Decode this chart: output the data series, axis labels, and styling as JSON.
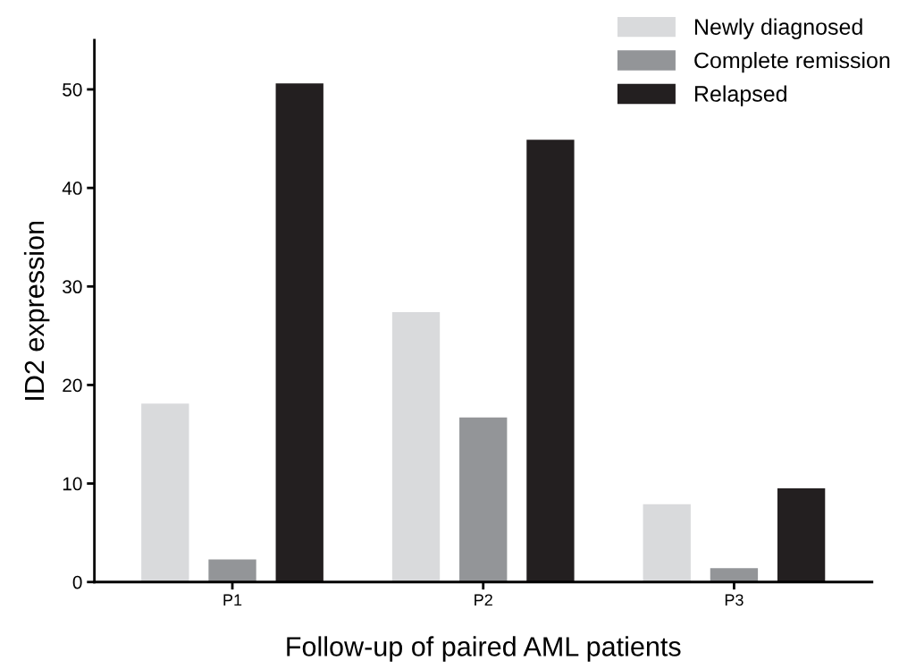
{
  "chart_data": {
    "type": "bar",
    "xlabel": "Follow-up of paired AML patients",
    "ylabel": "ID2 expression",
    "categories": [
      "P1",
      "P2",
      "P3"
    ],
    "series": [
      {
        "name": "Newly diagnosed",
        "color": "#d9dadc",
        "values": [
          18.1,
          27.4,
          7.9
        ]
      },
      {
        "name": "Complete remission",
        "color": "#939598",
        "values": [
          2.3,
          16.7,
          1.4
        ]
      },
      {
        "name": "Relapsed",
        "color": "#231f20",
        "values": [
          50.6,
          44.9,
          9.5
        ]
      }
    ],
    "ylim": [
      0,
      55
    ],
    "yticks": [
      0,
      10,
      20,
      30,
      40,
      50
    ],
    "grid": false,
    "legend": "top right"
  }
}
